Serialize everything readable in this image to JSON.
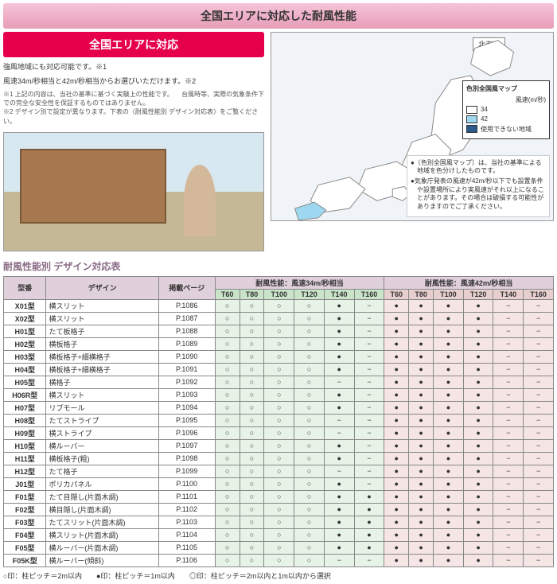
{
  "title": "全国エリアに対応した耐風性能",
  "subBanner": "全国エリアに対応",
  "desc1": "強風地域にも対応可能です。※1",
  "desc2": "風速34m/秒相当と42m/秒相当からお選びいただけます。※2",
  "note1": "※1 上記の内容は、当社の基準に基づく実験上の性能です。\n　台風時等、実際の気象条件下での完全な安全性を保証するものではありません。",
  "note2": "※2 デザイン別で設定が異なります。下表の〈耐風性能別 デザイン対応表〉をご覧ください。",
  "hokkaidoLabel": "北海道",
  "legend": {
    "title": "色別全国風マップ",
    "unit": "風速(m/秒)",
    "items": [
      {
        "color": "#ffffff",
        "label": "34"
      },
      {
        "color": "#9ed8f0",
        "label": "42"
      },
      {
        "color": "#2c5a8a",
        "label": "使用できない地域"
      }
    ]
  },
  "mapNotes": [
    "●〔色別全国風マップ〕は、当社の基準による地域を色分けしたものです。",
    "●気象庁発表の風速が42m/秒以下でも設置条件や設置場所により実風速がそれ以上になることがあります。その場合は破損する可能性がありますのでご了承ください。"
  ],
  "tableTitle": "耐風性能別 デザイン対応表",
  "headers": {
    "model": "型番",
    "design": "デザイン",
    "page": "掲載ページ",
    "groupA": "耐風性能：風速34m/秒相当",
    "groupB": "耐風性能：風速42m/秒相当",
    "sizes": [
      "T60",
      "T80",
      "T100",
      "T120",
      "T140",
      "T160"
    ]
  },
  "rows": [
    {
      "m": "X01型",
      "d": "横スリット",
      "p": "P.1086",
      "a": [
        "○",
        "○",
        "○",
        "○",
        "●",
        "−"
      ],
      "b": [
        "●",
        "●",
        "●",
        "●",
        "−",
        "−"
      ]
    },
    {
      "m": "X02型",
      "d": "横スリット",
      "p": "P.1087",
      "a": [
        "○",
        "○",
        "○",
        "○",
        "●",
        "−"
      ],
      "b": [
        "●",
        "●",
        "●",
        "●",
        "−",
        "−"
      ]
    },
    {
      "m": "H01型",
      "d": "たて板格子",
      "p": "P.1088",
      "a": [
        "○",
        "○",
        "○",
        "○",
        "●",
        "−"
      ],
      "b": [
        "●",
        "●",
        "●",
        "●",
        "−",
        "−"
      ]
    },
    {
      "m": "H02型",
      "d": "横板格子",
      "p": "P.1089",
      "a": [
        "○",
        "○",
        "○",
        "○",
        "●",
        "−"
      ],
      "b": [
        "●",
        "●",
        "●",
        "●",
        "−",
        "−"
      ]
    },
    {
      "m": "H03型",
      "d": "横板格子+細横格子",
      "p": "P.1090",
      "a": [
        "○",
        "○",
        "○",
        "○",
        "●",
        "−"
      ],
      "b": [
        "●",
        "●",
        "●",
        "●",
        "−",
        "−"
      ]
    },
    {
      "m": "H04型",
      "d": "横板格子+細横格子",
      "p": "P.1091",
      "a": [
        "○",
        "○",
        "○",
        "○",
        "●",
        "−"
      ],
      "b": [
        "●",
        "●",
        "●",
        "●",
        "−",
        "−"
      ]
    },
    {
      "m": "H05型",
      "d": "横格子",
      "p": "P.1092",
      "a": [
        "○",
        "○",
        "○",
        "○",
        "−",
        "−"
      ],
      "b": [
        "●",
        "●",
        "●",
        "●",
        "−",
        "−"
      ]
    },
    {
      "m": "H06R型",
      "d": "横スリット",
      "p": "P.1093",
      "a": [
        "○",
        "○",
        "○",
        "○",
        "●",
        "−"
      ],
      "b": [
        "●",
        "●",
        "●",
        "●",
        "−",
        "−"
      ]
    },
    {
      "m": "H07型",
      "d": "リブモール",
      "p": "P.1094",
      "a": [
        "○",
        "○",
        "○",
        "○",
        "●",
        "−"
      ],
      "b": [
        "●",
        "●",
        "●",
        "●",
        "−",
        "−"
      ]
    },
    {
      "m": "H08型",
      "d": "たてストライプ",
      "p": "P.1095",
      "a": [
        "○",
        "○",
        "○",
        "○",
        "−",
        "−"
      ],
      "b": [
        "●",
        "●",
        "●",
        "●",
        "−",
        "−"
      ]
    },
    {
      "m": "H09型",
      "d": "横ストライプ",
      "p": "P.1096",
      "a": [
        "○",
        "○",
        "○",
        "○",
        "−",
        "−"
      ],
      "b": [
        "●",
        "●",
        "●",
        "●",
        "−",
        "−"
      ]
    },
    {
      "m": "H10型",
      "d": "横ルーバー",
      "p": "P.1097",
      "a": [
        "○",
        "○",
        "○",
        "○",
        "●",
        "−"
      ],
      "b": [
        "●",
        "●",
        "●",
        "●",
        "−",
        "−"
      ]
    },
    {
      "m": "H11型",
      "d": "横板格子(粗)",
      "p": "P.1098",
      "a": [
        "○",
        "○",
        "○",
        "○",
        "●",
        "−"
      ],
      "b": [
        "●",
        "●",
        "●",
        "●",
        "−",
        "−"
      ]
    },
    {
      "m": "H12型",
      "d": "たて格子",
      "p": "P.1099",
      "a": [
        "○",
        "○",
        "○",
        "○",
        "−",
        "−"
      ],
      "b": [
        "●",
        "●",
        "●",
        "●",
        "−",
        "−"
      ]
    },
    {
      "m": "J01型",
      "d": "ポリカパネル",
      "p": "P.1100",
      "a": [
        "○",
        "○",
        "○",
        "○",
        "●",
        "−"
      ],
      "b": [
        "●",
        "●",
        "●",
        "●",
        "−",
        "−"
      ]
    },
    {
      "m": "F01型",
      "d": "たて目隠し(片面木調)",
      "p": "P.1101",
      "a": [
        "○",
        "○",
        "○",
        "○",
        "●",
        "●"
      ],
      "b": [
        "●",
        "●",
        "●",
        "●",
        "−",
        "−"
      ]
    },
    {
      "m": "F02型",
      "d": "横目隠し(片面木調)",
      "p": "P.1102",
      "a": [
        "○",
        "○",
        "○",
        "○",
        "●",
        "●"
      ],
      "b": [
        "●",
        "●",
        "●",
        "●",
        "−",
        "−"
      ]
    },
    {
      "m": "F03型",
      "d": "たてスリット(片面木調)",
      "p": "P.1103",
      "a": [
        "○",
        "○",
        "○",
        "○",
        "●",
        "●"
      ],
      "b": [
        "●",
        "●",
        "●",
        "●",
        "−",
        "−"
      ]
    },
    {
      "m": "F04型",
      "d": "横スリット(片面木調)",
      "p": "P.1104",
      "a": [
        "○",
        "○",
        "○",
        "○",
        "●",
        "●"
      ],
      "b": [
        "●",
        "●",
        "●",
        "●",
        "−",
        "−"
      ]
    },
    {
      "m": "F05型",
      "d": "横ルーバー(片面木調)",
      "p": "P.1105",
      "a": [
        "○",
        "○",
        "○",
        "○",
        "●",
        "●"
      ],
      "b": [
        "●",
        "●",
        "●",
        "●",
        "−",
        "−"
      ]
    },
    {
      "m": "F05K型",
      "d": "横ルーバー(傾斜)",
      "p": "P.1106",
      "a": [
        "○",
        "○",
        "○",
        "○",
        "−",
        "−"
      ],
      "b": [
        "●",
        "●",
        "●",
        "●",
        "−",
        "−"
      ]
    }
  ],
  "footnote": "○印：柱ピッチ＝2m以内　　●印：柱ピッチ＝1m以内　　◎印：柱ピッチ＝2m以内と1m以内から選択",
  "colors": {
    "groupA": "#e7f3e7",
    "groupB": "#f5e5e5"
  }
}
